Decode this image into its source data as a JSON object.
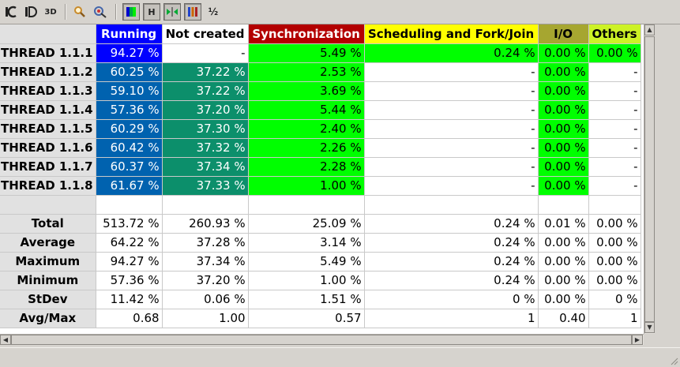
{
  "toolbar": {
    "items": [
      {
        "name": "code-view-icon",
        "glyph": "C"
      },
      {
        "name": "semantic-view-icon",
        "glyph": "D"
      },
      {
        "name": "3d-view-icon",
        "glyph": "3D"
      },
      {
        "name": "zoom-icon",
        "glyph": "⌕"
      },
      {
        "name": "color-palette-icon",
        "glyph": "◎"
      },
      {
        "name": "gradient-color-icon",
        "glyph": ""
      },
      {
        "name": "horizontal-view-icon",
        "glyph": "H"
      },
      {
        "name": "hide-empty-columns-icon",
        "glyph": "▸◂"
      },
      {
        "name": "show-bars-icon",
        "glyph": ""
      },
      {
        "name": "fraction-format-icon",
        "glyph": "½"
      }
    ]
  },
  "table": {
    "columns": [
      {
        "label": "Running",
        "bg": "#0000ff",
        "fg": "#ffffff"
      },
      {
        "label": "Not created",
        "bg": "#ffffff",
        "fg": "#000000"
      },
      {
        "label": "Synchronization",
        "bg": "#b30000",
        "fg": "#ffffff"
      },
      {
        "label": "Scheduling and Fork/Join",
        "bg": "#ffff00",
        "fg": "#000000"
      },
      {
        "label": "I/O",
        "bg": "#a6a630",
        "fg": "#000000"
      },
      {
        "label": "Others",
        "bg": "#cdf226",
        "fg": "#000000"
      }
    ],
    "rows": [
      {
        "label": "THREAD 1.1.1",
        "cells": [
          "94.27 %",
          "-",
          "5.49 %",
          "0.24 %",
          "0.00 %",
          "0.00 %"
        ],
        "colors": [
          "#0000ff",
          "#ffffff",
          "#00ff00",
          "#00ff00",
          "#00ff00",
          "#00ff00"
        ],
        "fg": [
          "#ffffff",
          "#000000",
          "#000000",
          "#000000",
          "#000000",
          "#000000"
        ]
      },
      {
        "label": "THREAD 1.1.2",
        "cells": [
          "60.25 %",
          "37.22 %",
          "2.53 %",
          "-",
          "0.00 %",
          "-"
        ],
        "colors": [
          "#0062af",
          "#0c8f6b",
          "#00ff00",
          "#ffffff",
          "#00ff00",
          "#ffffff"
        ],
        "fg": [
          "#ffffff",
          "#ffffff",
          "#000000",
          "#000000",
          "#000000",
          "#000000"
        ]
      },
      {
        "label": "THREAD 1.1.3",
        "cells": [
          "59.10 %",
          "37.22 %",
          "3.69 %",
          "-",
          "0.00 %",
          "-"
        ],
        "colors": [
          "#0062af",
          "#0c8f6b",
          "#00ff00",
          "#ffffff",
          "#00ff00",
          "#ffffff"
        ],
        "fg": [
          "#ffffff",
          "#ffffff",
          "#000000",
          "#000000",
          "#000000",
          "#000000"
        ]
      },
      {
        "label": "THREAD 1.1.4",
        "cells": [
          "57.36 %",
          "37.20 %",
          "5.44 %",
          "-",
          "0.00 %",
          "-"
        ],
        "colors": [
          "#0062af",
          "#0c8f6b",
          "#00ff00",
          "#ffffff",
          "#00ff00",
          "#ffffff"
        ],
        "fg": [
          "#ffffff",
          "#ffffff",
          "#000000",
          "#000000",
          "#000000",
          "#000000"
        ]
      },
      {
        "label": "THREAD 1.1.5",
        "cells": [
          "60.29 %",
          "37.30 %",
          "2.40 %",
          "-",
          "0.00 %",
          "-"
        ],
        "colors": [
          "#0062af",
          "#0c8f6b",
          "#00ff00",
          "#ffffff",
          "#00ff00",
          "#ffffff"
        ],
        "fg": [
          "#ffffff",
          "#ffffff",
          "#000000",
          "#000000",
          "#000000",
          "#000000"
        ]
      },
      {
        "label": "THREAD 1.1.6",
        "cells": [
          "60.42 %",
          "37.32 %",
          "2.26 %",
          "-",
          "0.00 %",
          "-"
        ],
        "colors": [
          "#0062af",
          "#0c8f6b",
          "#00ff00",
          "#ffffff",
          "#00ff00",
          "#ffffff"
        ],
        "fg": [
          "#ffffff",
          "#ffffff",
          "#000000",
          "#000000",
          "#000000",
          "#000000"
        ]
      },
      {
        "label": "THREAD 1.1.7",
        "cells": [
          "60.37 %",
          "37.34 %",
          "2.28 %",
          "-",
          "0.00 %",
          "-"
        ],
        "colors": [
          "#0062af",
          "#0c8f6b",
          "#00ff00",
          "#ffffff",
          "#00ff00",
          "#ffffff"
        ],
        "fg": [
          "#ffffff",
          "#ffffff",
          "#000000",
          "#000000",
          "#000000",
          "#000000"
        ]
      },
      {
        "label": "THREAD 1.1.8",
        "cells": [
          "61.67 %",
          "37.33 %",
          "1.00 %",
          "-",
          "0.00 %",
          "-"
        ],
        "colors": [
          "#0062af",
          "#0c8f6b",
          "#00ff00",
          "#ffffff",
          "#00ff00",
          "#ffffff"
        ],
        "fg": [
          "#ffffff",
          "#ffffff",
          "#000000",
          "#000000",
          "#000000",
          "#000000"
        ]
      }
    ],
    "stats": [
      {
        "label": "Total",
        "cells": [
          "513.72 %",
          "260.93 %",
          "25.09 %",
          "0.24 %",
          "0.01 %",
          "0.00 %"
        ]
      },
      {
        "label": "Average",
        "cells": [
          "64.22 %",
          "37.28 %",
          "3.14 %",
          "0.24 %",
          "0.00 %",
          "0.00 %"
        ]
      },
      {
        "label": "Maximum",
        "cells": [
          "94.27 %",
          "37.34 %",
          "5.49 %",
          "0.24 %",
          "0.00 %",
          "0.00 %"
        ]
      },
      {
        "label": "Minimum",
        "cells": [
          "57.36 %",
          "37.20 %",
          "1.00 %",
          "0.24 %",
          "0.00 %",
          "0.00 %"
        ]
      },
      {
        "label": "StDev",
        "cells": [
          "11.42 %",
          "0.06 %",
          "1.51 %",
          "0 %",
          "0.00 %",
          "0 %"
        ]
      },
      {
        "label": "Avg/Max",
        "cells": [
          "0.68",
          "1.00",
          "0.57",
          "1",
          "0.40",
          "1"
        ]
      }
    ]
  }
}
